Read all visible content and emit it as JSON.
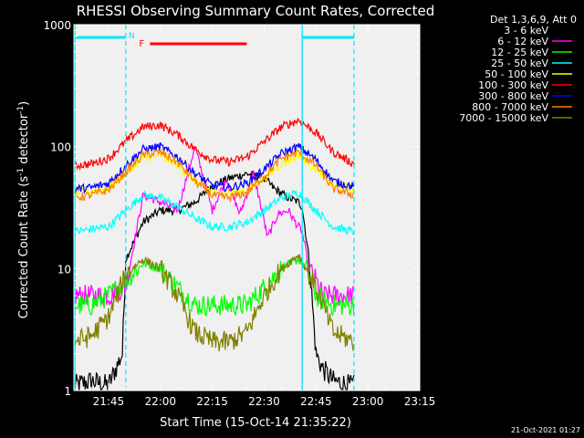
{
  "chart_data": {
    "type": "line",
    "title": "RHESSI Observing Summary Count Rates, Corrected",
    "xlabel": "Start Time (15-Oct-14 21:35:22)",
    "ylabel": "Corrected Count Rate (s⁻¹ detector⁻¹)",
    "ylabel_main": "Corrected Count Rate (s",
    "ylabel_sup1": "-1",
    "ylabel_mid": " detector",
    "ylabel_sup2": "-1",
    "ylabel_end": ")",
    "y_scale": "log",
    "ylim": [
      1,
      1000
    ],
    "xlim_minutes": [
      0,
      100
    ],
    "x_ticks": [
      {
        "label": "21:45",
        "min": 10
      },
      {
        "label": "22:00",
        "min": 25
      },
      {
        "label": "22:15",
        "min": 40
      },
      {
        "label": "22:30",
        "min": 55
      },
      {
        "label": "22:45",
        "min": 70
      },
      {
        "label": "23:00",
        "min": 85
      },
      {
        "label": "23:15",
        "min": 100
      }
    ],
    "y_ticks": [
      {
        "label": "1",
        "value": 1
      },
      {
        "label": "10",
        "value": 10
      },
      {
        "label": "100",
        "value": 100
      },
      {
        "label": "1000",
        "value": 1000
      }
    ],
    "legend_title": "Det 1,3,6,9, Att 0",
    "legend_position": "top-right",
    "night_boundaries_min": [
      15,
      66,
      81
    ],
    "day_bars": [
      {
        "from": 0,
        "to": 15
      },
      {
        "from": 66,
        "to": 81
      }
    ],
    "night_label": "N",
    "flare_label": "F",
    "flare_interval": [
      22,
      50
    ],
    "series": [
      {
        "name": "3 - 6 keV",
        "color": "#000000",
        "x": [
          0,
          5,
          10,
          14,
          15,
          20,
          25,
          30,
          35,
          40,
          45,
          50,
          55,
          58,
          62,
          65,
          66,
          68,
          70,
          72,
          75,
          80,
          81
        ],
        "values": [
          1.1,
          1.2,
          1.1,
          2,
          12,
          24,
          30,
          30,
          35,
          48,
          55,
          60,
          55,
          45,
          38,
          35,
          32,
          12,
          2,
          1.5,
          1.2,
          1.1,
          1.1
        ]
      },
      {
        "name": "6 - 12 keV",
        "color": "#ff00ff",
        "x": [
          0,
          5,
          10,
          15,
          20,
          25,
          30,
          35,
          40,
          44,
          48,
          52,
          56,
          59,
          62,
          64,
          66,
          68,
          70,
          72,
          76,
          81
        ],
        "values": [
          6,
          6,
          6,
          7,
          40,
          35,
          30,
          100,
          30,
          55,
          28,
          60,
          18,
          28,
          30,
          24,
          20,
          10,
          8,
          6,
          6,
          6
        ]
      },
      {
        "name": "12 - 25 keV",
        "color": "#00ff00",
        "x": [
          0,
          5,
          10,
          15,
          20,
          25,
          30,
          35,
          40,
          45,
          50,
          55,
          60,
          65,
          68,
          70,
          75,
          81
        ],
        "values": [
          5,
          5,
          6,
          8,
          11,
          10,
          7,
          5,
          5,
          5,
          5,
          7,
          10,
          12,
          9,
          6,
          5,
          5
        ]
      },
      {
        "name": "25 - 50 keV",
        "color": "#00ffff",
        "x": [
          0,
          5,
          10,
          15,
          20,
          25,
          30,
          35,
          40,
          45,
          50,
          55,
          60,
          65,
          70,
          75,
          81
        ],
        "values": [
          20,
          21,
          22,
          30,
          40,
          38,
          32,
          26,
          22,
          22,
          24,
          30,
          38,
          42,
          30,
          22,
          20
        ]
      },
      {
        "name": "50 - 100 keV",
        "color": "#ffff00",
        "x": [
          0,
          5,
          10,
          15,
          20,
          25,
          30,
          35,
          40,
          45,
          50,
          55,
          60,
          65,
          70,
          75,
          81
        ],
        "values": [
          42,
          43,
          46,
          60,
          80,
          85,
          70,
          52,
          43,
          42,
          44,
          55,
          72,
          85,
          65,
          48,
          45
        ]
      },
      {
        "name": "100 - 300 keV",
        "color": "#ff0000",
        "x": [
          0,
          5,
          10,
          15,
          20,
          25,
          30,
          35,
          40,
          45,
          50,
          55,
          60,
          65,
          70,
          75,
          81
        ],
        "values": [
          70,
          72,
          80,
          110,
          145,
          150,
          125,
          95,
          78,
          75,
          82,
          110,
          145,
          165,
          130,
          90,
          72
        ]
      },
      {
        "name": "300 - 800 keV",
        "color": "#0000ff",
        "x": [
          0,
          5,
          10,
          15,
          20,
          25,
          30,
          35,
          40,
          45,
          50,
          55,
          60,
          65,
          70,
          75,
          81
        ],
        "values": [
          45,
          46,
          50,
          70,
          95,
          100,
          82,
          60,
          48,
          46,
          50,
          65,
          88,
          100,
          78,
          52,
          47
        ]
      },
      {
        "name": "800 - 7000 keV",
        "color": "#ff8000",
        "x": [
          0,
          5,
          10,
          15,
          20,
          25,
          30,
          35,
          40,
          45,
          50,
          55,
          60,
          65,
          70,
          75,
          81
        ],
        "values": [
          38,
          40,
          44,
          62,
          85,
          90,
          74,
          52,
          40,
          38,
          42,
          57,
          80,
          90,
          70,
          45,
          40
        ]
      },
      {
        "name": "7000 - 15000 keV",
        "color": "#808000",
        "x": [
          0,
          5,
          10,
          15,
          20,
          25,
          30,
          35,
          40,
          45,
          50,
          55,
          60,
          65,
          70,
          75,
          81
        ],
        "values": [
          2.5,
          2.8,
          4,
          9,
          12,
          10,
          6,
          3,
          2.5,
          2.5,
          3,
          6,
          10,
          13,
          7,
          3,
          2.5
        ]
      }
    ]
  },
  "footer": {
    "timestamp": "21-Oct-2021 01:27"
  }
}
